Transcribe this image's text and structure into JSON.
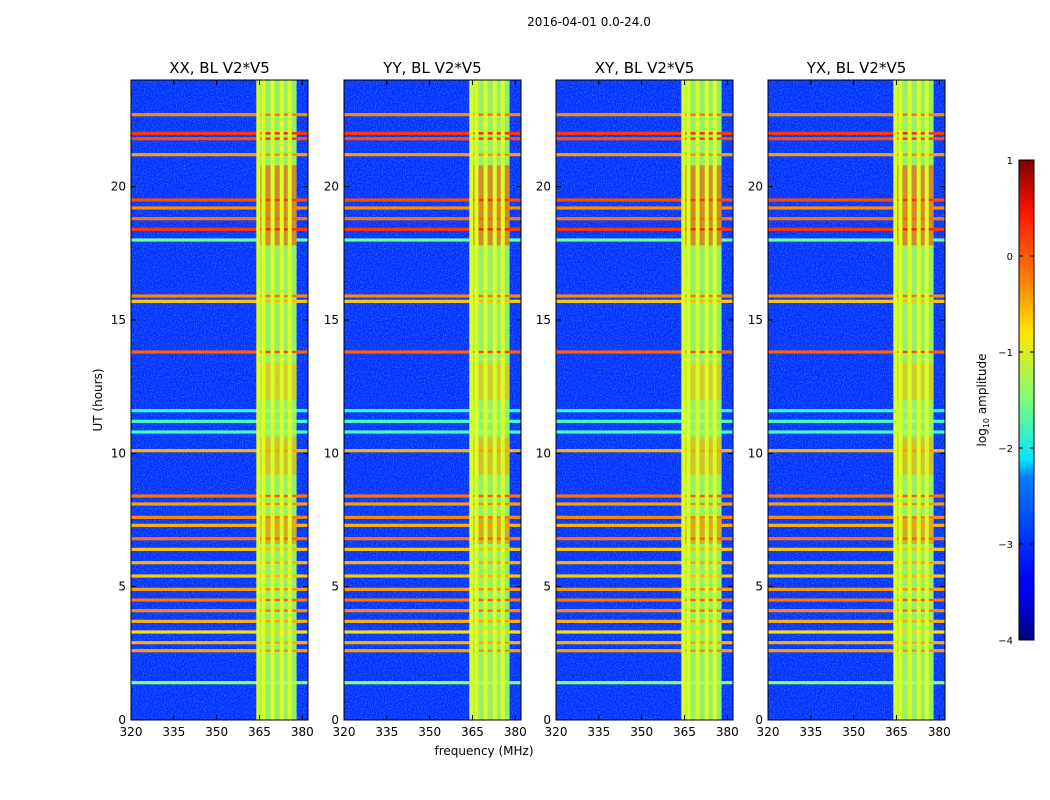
{
  "chart_data": {
    "type": "heatmap",
    "suptitle": "2016-04-01 0.0-24.0",
    "xlabel": "frequency (MHz)",
    "ylabel": "UT (hours)",
    "xlim": [
      320,
      382
    ],
    "ylim": [
      0,
      24
    ],
    "x_ticks": [
      320,
      335,
      350,
      365,
      380
    ],
    "y_ticks": [
      0,
      5,
      10,
      15,
      20
    ],
    "panels": [
      {
        "title": "XX, BL V2*V5"
      },
      {
        "title": "YY, BL V2*V5"
      },
      {
        "title": "XY, BL V2*V5"
      },
      {
        "title": "YX, BL V2*V5"
      }
    ],
    "colorbar": {
      "label": "log10 amplitude",
      "label_main": "log",
      "label_sub": "10",
      "label_rest": " amplitude",
      "range": [
        -4,
        1
      ],
      "ticks": [
        1,
        0,
        -1,
        -2,
        -3,
        -4
      ],
      "tick_labels": [
        "1",
        "0",
        "−1",
        "−2",
        "−3",
        "−4"
      ],
      "colormap": "jet"
    },
    "bright_band_mhz": [
      364,
      378
    ],
    "bright_channels_mhz": [
      364.6,
      366.4,
      369.6,
      372.8,
      375.6
    ],
    "rfi_rows_ut": [
      {
        "t": 22.7,
        "v": -0.3
      },
      {
        "t": 22.0,
        "v": 0.1
      },
      {
        "t": 21.8,
        "v": 0.0
      },
      {
        "t": 21.2,
        "v": -0.4
      },
      {
        "t": 19.5,
        "v": 0.0
      },
      {
        "t": 19.2,
        "v": -0.3
      },
      {
        "t": 18.8,
        "v": -0.2
      },
      {
        "t": 18.4,
        "v": 0.1
      },
      {
        "t": 18.0,
        "v": -1.6
      },
      {
        "t": 15.9,
        "v": -0.3
      },
      {
        "t": 15.7,
        "v": -0.6
      },
      {
        "t": 13.8,
        "v": -0.1
      },
      {
        "t": 11.6,
        "v": -1.9
      },
      {
        "t": 11.2,
        "v": -1.8
      },
      {
        "t": 10.8,
        "v": -1.8
      },
      {
        "t": 10.1,
        "v": -0.5
      },
      {
        "t": 8.4,
        "v": -0.2
      },
      {
        "t": 8.1,
        "v": -0.4
      },
      {
        "t": 7.6,
        "v": -0.3
      },
      {
        "t": 7.3,
        "v": -0.5
      },
      {
        "t": 6.8,
        "v": -0.2
      },
      {
        "t": 6.4,
        "v": -0.6
      },
      {
        "t": 5.9,
        "v": -0.5
      },
      {
        "t": 5.4,
        "v": -0.6
      },
      {
        "t": 4.9,
        "v": -0.4
      },
      {
        "t": 4.5,
        "v": -0.2
      },
      {
        "t": 4.1,
        "v": -0.3
      },
      {
        "t": 3.7,
        "v": -0.5
      },
      {
        "t": 3.3,
        "v": -0.7
      },
      {
        "t": 2.9,
        "v": -0.5
      },
      {
        "t": 2.6,
        "v": -0.4
      },
      {
        "t": 1.4,
        "v": -1.5
      }
    ],
    "hot_zones": [
      {
        "t0": 17.8,
        "t1": 20.8,
        "v": 0.1
      },
      {
        "t0": 12.0,
        "t1": 13.4,
        "v": -0.5
      },
      {
        "t0": 9.2,
        "t1": 10.6,
        "v": -0.4
      },
      {
        "t0": 6.6,
        "t1": 7.6,
        "v": -0.2
      }
    ]
  }
}
